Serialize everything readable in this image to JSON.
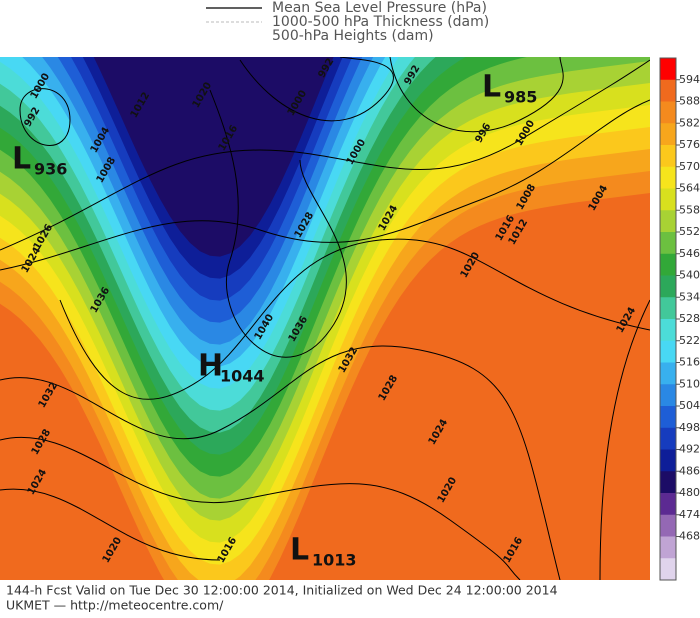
{
  "legend": [
    "Mean Sea Level Pressure (hPa)",
    "1000-500 hPa Thickness (dam)",
    "500-hPa Heights (dam)"
  ],
  "colorbar": {
    "ticks": [
      594,
      588,
      582,
      576,
      570,
      564,
      558,
      552,
      546,
      540,
      534,
      528,
      522,
      516,
      510,
      504,
      498,
      492,
      486,
      480,
      474,
      468
    ],
    "colors": [
      "#ff0000",
      "#f06a1e",
      "#f48a1e",
      "#f7a61c",
      "#fbc81c",
      "#f6e41c",
      "#d8e01e",
      "#a8d234",
      "#6cc040",
      "#32a838",
      "#2ca85a",
      "#42c89a",
      "#4cdcd8",
      "#48d8f4",
      "#38b0ee",
      "#2a88e4",
      "#1e5ed6",
      "#163cbe",
      "#0e1e98",
      "#1c0c66",
      "#5c2a92",
      "#9468b4",
      "#c0a4d4",
      "#e0d4ec"
    ]
  },
  "centers": [
    {
      "letter": "L",
      "value": 936
    },
    {
      "letter": "L",
      "value": 985
    },
    {
      "letter": "H",
      "value": 1044
    },
    {
      "letter": "L",
      "value": 1013
    }
  ],
  "isobar_labels": [
    1000,
    992,
    1012,
    1004,
    1020,
    1016,
    1008,
    992,
    992,
    1000,
    1000,
    996,
    1000,
    1004,
    1008,
    1012,
    1016,
    1024,
    1020,
    1028,
    1026,
    1024,
    1036,
    1040,
    1036,
    1032,
    1028,
    1032,
    1028,
    1024,
    1020,
    1016,
    1024,
    1020,
    1016,
    1024
  ],
  "footer": [
    "144-h Fcst Valid on Tue Dec 30 12:00:00 2014, Initialized on Wed Dec 24 12:00:00 2014",
    "UKMET  — http://meteocentre.com/"
  ]
}
